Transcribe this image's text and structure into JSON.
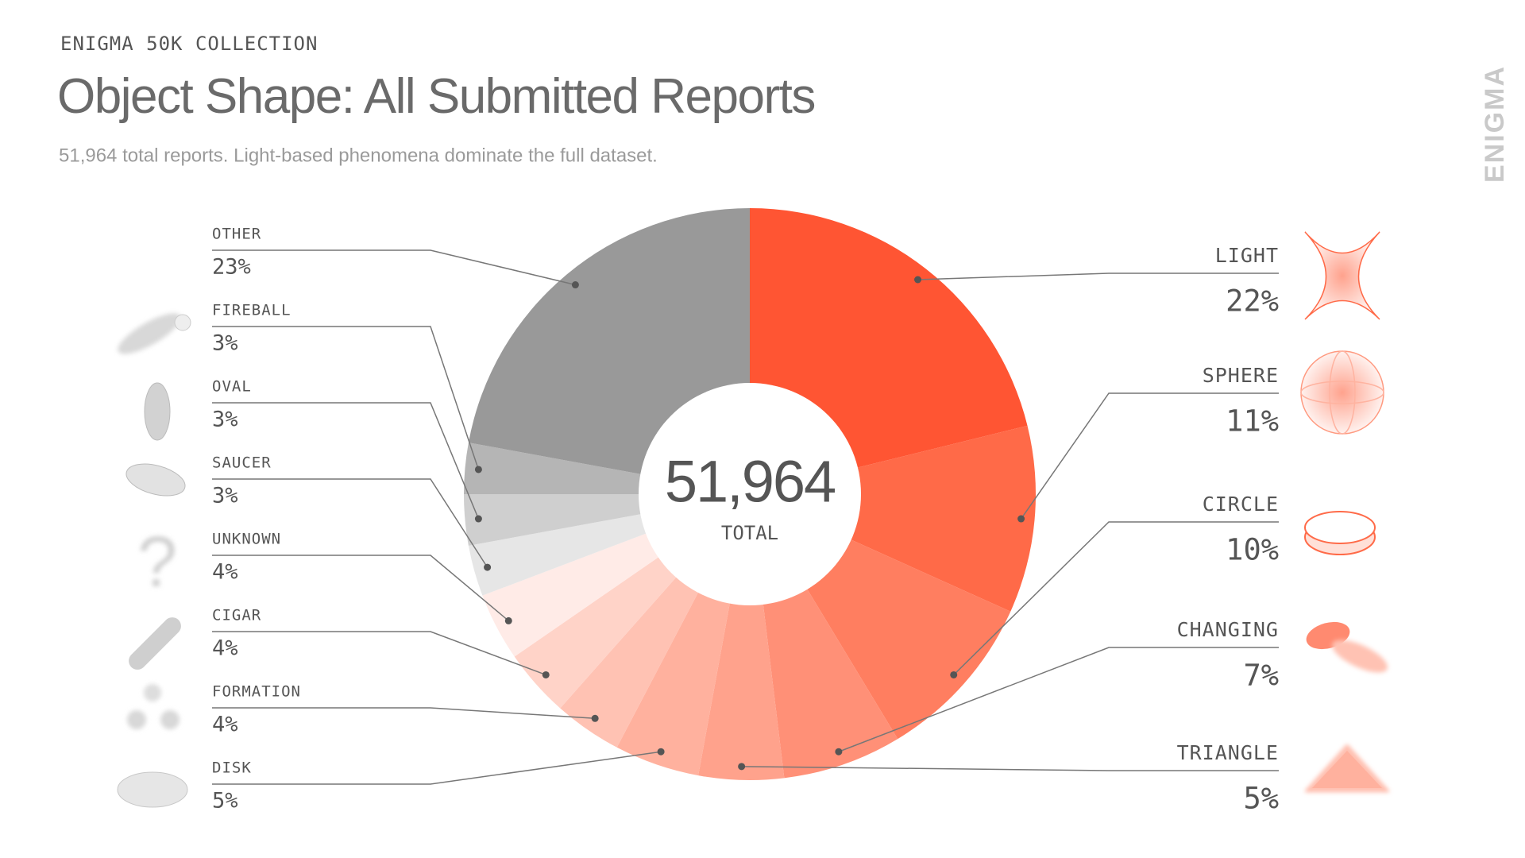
{
  "chart_data": {
    "type": "donut",
    "kicker": "ENIGMA 50K COLLECTION",
    "title": "Object Shape: All Submitted Reports",
    "subtitle": "51,964 total reports. Light-based phenomena dominate the full dataset.",
    "brand": "ENIGMA",
    "center_value": "51,964",
    "center_label": "TOTAL",
    "categories": [
      "LIGHT",
      "SPHERE",
      "CIRCLE",
      "CHANGING",
      "TRIANGLE",
      "DISK",
      "FORMATION",
      "CIGAR",
      "UNKNOWN",
      "SAUCER",
      "OVAL",
      "FIREBALL",
      "OTHER"
    ],
    "values": [
      22,
      11,
      10,
      7,
      5,
      5,
      4,
      4,
      4,
      3,
      3,
      3,
      23
    ],
    "value_labels": [
      "22%",
      "11%",
      "10%",
      "7%",
      "5%",
      "5%",
      "4%",
      "4%",
      "4%",
      "3%",
      "3%",
      "3%",
      "23%"
    ],
    "colors": [
      "#ff5533",
      "#ff6a48",
      "#ff7e60",
      "#ff9077",
      "#ffa28c",
      "#ffb19e",
      "#ffc2b3",
      "#ffd3c8",
      "#ffebe7",
      "#e6e6e6",
      "#cfcfcf",
      "#b5b5b5",
      "#999999"
    ]
  }
}
